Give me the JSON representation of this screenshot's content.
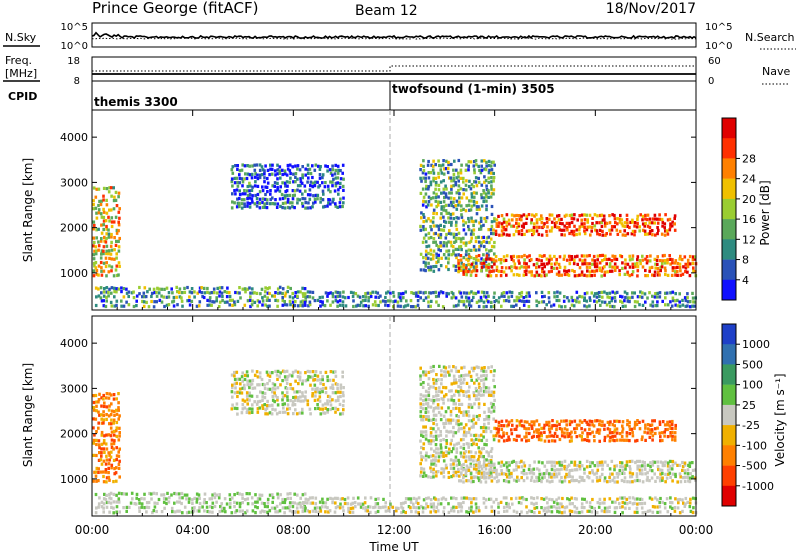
{
  "header": {
    "station": "Prince George (fitACF)",
    "beam": "Beam 12",
    "date": "18/Nov/2017"
  },
  "panels": {
    "nsky_label": "N.Sky",
    "nsearch_label": "N.Search",
    "freq_label_line1": "Freq.",
    "freq_label_line2": "[MHz]",
    "nave_label": "Nave",
    "cpid_label": "CPID",
    "nsky_ticks": [
      "10^5",
      "10^0"
    ],
    "nsearch_ticks": [
      "10^5",
      "10^0"
    ],
    "freq_ticks": [
      "18",
      "8"
    ],
    "nave_ticks": [
      "60",
      "0"
    ],
    "cpid_segments": [
      {
        "label": "themis 3300",
        "start_hour": 0
      },
      {
        "label": "twofsound (1-min) 3505",
        "start_hour": 12
      }
    ]
  },
  "chart_data": [
    {
      "type": "heatmap",
      "name": "power",
      "xlabel": "",
      "ylabel": "Slant Range [km]",
      "xlim": [
        0,
        24
      ],
      "ylim": [
        180,
        4600
      ],
      "yticks": [
        1000,
        2000,
        3000,
        4000
      ],
      "colorbar": {
        "label": "Power [dB]",
        "range": [
          0,
          32
        ],
        "ticks": [
          "4",
          "8",
          "12",
          "16",
          "20",
          "24",
          "28"
        ],
        "colors": [
          "#1010ff",
          "#2a52b8",
          "#2e8b80",
          "#5aa85a",
          "#9acd32",
          "#f0c000",
          "#ff8000",
          "#ff3000",
          "#e00000"
        ]
      },
      "regions": [
        {
          "t": [
            0.0,
            1.1
          ],
          "r": [
            900,
            2900
          ],
          "level": 0.6
        },
        {
          "t": [
            0.1,
            8.5
          ],
          "r": [
            220,
            700
          ],
          "level": 0.3
        },
        {
          "t": [
            5.5,
            10.0
          ],
          "r": [
            2400,
            3400
          ],
          "level": 0.15
        },
        {
          "t": [
            13.0,
            16.0
          ],
          "r": [
            1000,
            3500
          ],
          "level": 0.35
        },
        {
          "t": [
            14.5,
            24.0
          ],
          "r": [
            900,
            1400
          ],
          "level": 0.8
        },
        {
          "t": [
            16.0,
            23.2
          ],
          "r": [
            1800,
            2300
          ],
          "level": 0.85
        },
        {
          "t": [
            8.0,
            24.0
          ],
          "r": [
            220,
            600
          ],
          "level": 0.25
        }
      ]
    },
    {
      "type": "heatmap",
      "name": "velocity",
      "xlabel": "Time UT",
      "ylabel": "Slant Range [km]",
      "xlim": [
        0,
        24
      ],
      "ylim": [
        180,
        4600
      ],
      "yticks": [
        1000,
        2000,
        3000,
        4000
      ],
      "xticks": [
        "00:00",
        "04:00",
        "08:00",
        "12:00",
        "16:00",
        "20:00",
        "00:00"
      ],
      "colorbar": {
        "label": "Velocity [m s⁻¹]",
        "range": [
          -1200,
          1200
        ],
        "ticks": [
          "1000",
          "500",
          "100",
          "25",
          "-25",
          "-100",
          "-500",
          "-1000"
        ],
        "colors": [
          "#1e40c8",
          "#3070b0",
          "#3a9a60",
          "#60c040",
          "#c8c8c0",
          "#f0b000",
          "#ff8000",
          "#ff4000",
          "#e00000"
        ]
      },
      "regions": [
        {
          "t": [
            0.0,
            1.1
          ],
          "r": [
            900,
            2900
          ],
          "level": -0.5
        },
        {
          "t": [
            0.1,
            8.5
          ],
          "r": [
            220,
            700
          ],
          "level": 0.1
        },
        {
          "t": [
            5.5,
            10.0
          ],
          "r": [
            2400,
            3400
          ],
          "level": 0.0
        },
        {
          "t": [
            13.0,
            16.0
          ],
          "r": [
            1000,
            3500
          ],
          "level": 0.0
        },
        {
          "t": [
            14.5,
            24.0
          ],
          "r": [
            900,
            1400
          ],
          "level": 0.0
        },
        {
          "t": [
            16.0,
            23.2
          ],
          "r": [
            1800,
            2300
          ],
          "level": -0.6
        },
        {
          "t": [
            8.0,
            24.0
          ],
          "r": [
            220,
            600
          ],
          "level": 0.0
        }
      ]
    }
  ]
}
